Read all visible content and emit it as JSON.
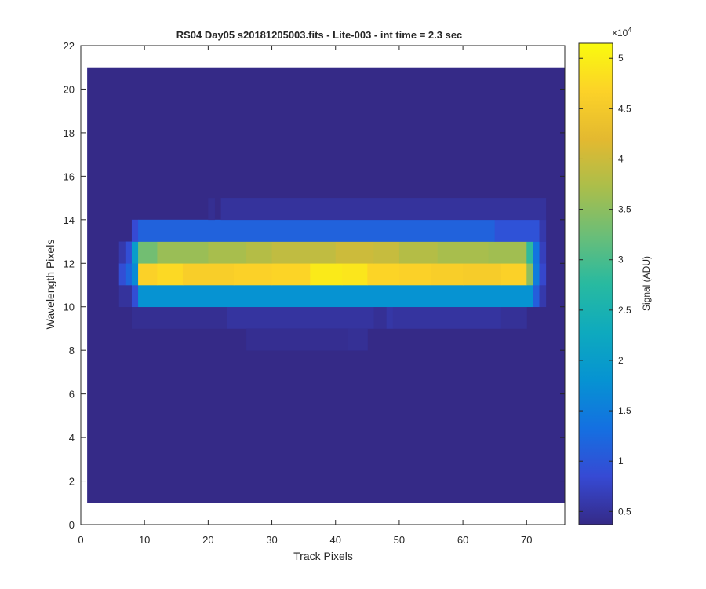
{
  "chart_data": {
    "type": "heatmap",
    "title": "RS04 Day05  s20181205003.fits - Lite-003 - int time = 2.3 sec",
    "xlabel": "Track Pixels",
    "ylabel": "Wavelength Pixels",
    "xlim": [
      0,
      76
    ],
    "ylim": [
      0,
      22
    ],
    "xticks": [
      0,
      10,
      20,
      30,
      40,
      50,
      60,
      70
    ],
    "yticks": [
      0,
      2,
      4,
      6,
      8,
      10,
      12,
      14,
      16,
      18,
      20,
      22
    ],
    "colorbar": {
      "label": "Signal (ADU)",
      "exponent_label": "×10",
      "exponent": "4",
      "range": [
        3700,
        51500
      ],
      "ticks": [
        0.5,
        1,
        1.5,
        2,
        2.5,
        3,
        3.5,
        4,
        4.5,
        5
      ],
      "tick_labels": [
        "0.5",
        "1",
        "1.5",
        "2",
        "2.5",
        "3",
        "3.5",
        "4",
        "4.5",
        "5"
      ],
      "colormap": "parula"
    },
    "grid": false,
    "image_extent": {
      "x": [
        1,
        76
      ],
      "y": [
        1,
        21
      ]
    },
    "background_value": 3700,
    "rows": [
      {
        "y": [
          9,
          10
        ],
        "segments": [
          [
            8,
            23,
            4400
          ],
          [
            23,
            46,
            5200
          ],
          [
            46,
            48,
            4600
          ],
          [
            48,
            49,
            5600
          ],
          [
            49,
            66,
            5200
          ],
          [
            66,
            70,
            4700
          ]
        ]
      },
      {
        "y": [
          8,
          9
        ],
        "segments": [
          [
            26,
            42,
            4300
          ],
          [
            42,
            45,
            4600
          ]
        ]
      },
      {
        "y": [
          10,
          11
        ],
        "segments": [
          [
            6,
            8,
            5000
          ],
          [
            8,
            9,
            9000
          ],
          [
            9,
            71,
            18000
          ],
          [
            71,
            72,
            11000
          ],
          [
            72,
            73,
            6000
          ]
        ]
      },
      {
        "y": [
          11,
          12
        ],
        "segments": [
          [
            6,
            7,
            9000
          ],
          [
            7,
            8,
            12000
          ],
          [
            8,
            9,
            17000
          ],
          [
            9,
            12,
            46500
          ],
          [
            12,
            16,
            47500
          ],
          [
            16,
            24,
            46000
          ],
          [
            24,
            30,
            46500
          ],
          [
            30,
            36,
            47000
          ],
          [
            36,
            41,
            49500
          ],
          [
            41,
            45,
            49000
          ],
          [
            45,
            50,
            47000
          ],
          [
            50,
            55,
            46500
          ],
          [
            55,
            60,
            46000
          ],
          [
            60,
            66,
            45500
          ],
          [
            66,
            70,
            46500
          ],
          [
            70,
            71,
            35000
          ],
          [
            71,
            72,
            15000
          ],
          [
            72,
            73,
            8000
          ]
        ]
      },
      {
        "y": [
          12,
          13
        ],
        "segments": [
          [
            6,
            7,
            6000
          ],
          [
            7,
            8,
            9000
          ],
          [
            8,
            9,
            20000
          ],
          [
            9,
            12,
            33000
          ],
          [
            12,
            20,
            36000
          ],
          [
            20,
            26,
            37000
          ],
          [
            26,
            30,
            38000
          ],
          [
            30,
            40,
            39000
          ],
          [
            40,
            46,
            40000
          ],
          [
            46,
            50,
            39500
          ],
          [
            50,
            56,
            38000
          ],
          [
            56,
            64,
            37000
          ],
          [
            64,
            70,
            36500
          ],
          [
            70,
            71,
            28000
          ],
          [
            71,
            72,
            14000
          ],
          [
            72,
            73,
            7000
          ]
        ]
      },
      {
        "y": [
          13,
          14
        ],
        "segments": [
          [
            8,
            9,
            8500
          ],
          [
            9,
            65,
            11500
          ],
          [
            65,
            72,
            9500
          ],
          [
            72,
            73,
            6000
          ]
        ]
      },
      {
        "y": [
          14,
          15
        ],
        "segments": [
          [
            20,
            21,
            4400
          ],
          [
            22,
            73,
            5000
          ]
        ]
      }
    ]
  }
}
